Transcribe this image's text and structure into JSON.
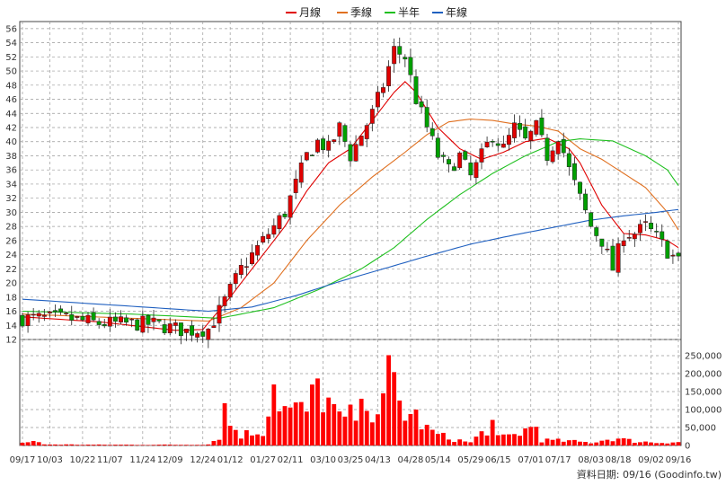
{
  "legend": [
    {
      "label": "月線",
      "color": "#e00000"
    },
    {
      "label": "季線",
      "color": "#e07020"
    },
    {
      "label": "半年",
      "color": "#20c020"
    },
    {
      "label": "年線",
      "color": "#2060c0"
    }
  ],
  "footer_text": "資料日期: 09/16 (Goodinfo.tw)",
  "chart_data": [
    {
      "type": "candlestick",
      "price_ticks": [
        12,
        14,
        16,
        18,
        20,
        22,
        24,
        26,
        28,
        30,
        32,
        34,
        36,
        38,
        40,
        42,
        44,
        46,
        48,
        50,
        52,
        54,
        56
      ],
      "ylim": [
        12,
        57
      ],
      "x_ticks": [
        "09/17",
        "10/03",
        "10/22",
        "11/07",
        "11/24",
        "12/09",
        "12/24",
        "01/12",
        "01/27",
        "02/11",
        "03/10",
        "03/25",
        "04/13",
        "04/28",
        "05/14",
        "05/29",
        "06/15",
        "07/01",
        "07/17",
        "08/03",
        "08/18",
        "09/02",
        "09/16"
      ],
      "price_anchors": [
        [
          0,
          15
        ],
        [
          8,
          15
        ],
        [
          14,
          14.3
        ],
        [
          24,
          14.2
        ],
        [
          30,
          13.2
        ],
        [
          34,
          13.5
        ],
        [
          36,
          16
        ],
        [
          40,
          22
        ],
        [
          44,
          26
        ],
        [
          48,
          30
        ],
        [
          50,
          34
        ],
        [
          52,
          38
        ],
        [
          54,
          40
        ],
        [
          56,
          39
        ],
        [
          58,
          42
        ],
        [
          60,
          38
        ],
        [
          62,
          41
        ],
        [
          64,
          44
        ],
        [
          66,
          48
        ],
        [
          68,
          53
        ],
        [
          70,
          52
        ],
        [
          72,
          46
        ],
        [
          74,
          42
        ],
        [
          76,
          38
        ],
        [
          78,
          36
        ],
        [
          80,
          38
        ],
        [
          82,
          35
        ],
        [
          84,
          38
        ],
        [
          86,
          41
        ],
        [
          88,
          39
        ],
        [
          90,
          42
        ],
        [
          92,
          40
        ],
        [
          94,
          42
        ],
        [
          96,
          38
        ],
        [
          98,
          41
        ],
        [
          100,
          36
        ],
        [
          102,
          32
        ],
        [
          104,
          28
        ],
        [
          106,
          26
        ],
        [
          108,
          22
        ],
        [
          110,
          27
        ],
        [
          112,
          27
        ],
        [
          114,
          28
        ],
        [
          116,
          26.5
        ],
        [
          118,
          24.5
        ],
        [
          120,
          23
        ]
      ],
      "series": [
        {
          "name": "月線",
          "color": "#e00000",
          "values": [
            [
              0,
              15.2
            ],
            [
              14,
              14.5
            ],
            [
              28,
              13.3
            ],
            [
              33,
              13.4
            ],
            [
              38,
              18
            ],
            [
              44,
              24
            ],
            [
              48,
              28
            ],
            [
              52,
              33
            ],
            [
              56,
              37
            ],
            [
              60,
              39
            ],
            [
              64,
              43
            ],
            [
              68,
              47
            ],
            [
              70,
              48.5
            ],
            [
              72,
              47
            ],
            [
              76,
              42
            ],
            [
              80,
              39
            ],
            [
              84,
              37.5
            ],
            [
              88,
              38.5
            ],
            [
              92,
              40
            ],
            [
              96,
              40.5
            ],
            [
              100,
              39
            ],
            [
              102,
              37
            ],
            [
              106,
              31
            ],
            [
              110,
              27
            ],
            [
              114,
              26.8
            ],
            [
              118,
              26
            ],
            [
              120,
              25
            ]
          ]
        },
        {
          "name": "季線",
          "color": "#e07020",
          "values": [
            [
              0,
              15.6
            ],
            [
              20,
              15
            ],
            [
              34,
              14.6
            ],
            [
              40,
              16.5
            ],
            [
              46,
              20
            ],
            [
              52,
              26
            ],
            [
              58,
              31
            ],
            [
              64,
              35
            ],
            [
              70,
              38.5
            ],
            [
              74,
              41
            ],
            [
              78,
              42.8
            ],
            [
              82,
              43.2
            ],
            [
              86,
              43
            ],
            [
              90,
              42.5
            ],
            [
              94,
              42.2
            ],
            [
              98,
              41.5
            ],
            [
              102,
              39
            ],
            [
              106,
              37.5
            ],
            [
              110,
              35.5
            ],
            [
              114,
              33.5
            ],
            [
              118,
              30
            ],
            [
              120,
              27.5
            ]
          ]
        },
        {
          "name": "半年",
          "color": "#20c020",
          "values": [
            [
              0,
              16
            ],
            [
              20,
              15.6
            ],
            [
              36,
              15
            ],
            [
              46,
              16.5
            ],
            [
              54,
              19
            ],
            [
              62,
              22
            ],
            [
              68,
              25
            ],
            [
              74,
              29
            ],
            [
              80,
              32.5
            ],
            [
              86,
              35.5
            ],
            [
              92,
              38
            ],
            [
              98,
              40
            ],
            [
              102,
              40.4
            ],
            [
              108,
              40.1
            ],
            [
              114,
              38
            ],
            [
              118,
              36
            ],
            [
              120,
              33.8
            ]
          ]
        },
        {
          "name": "年線",
          "color": "#2060c0",
          "values": [
            [
              0,
              17.7
            ],
            [
              14,
              17
            ],
            [
              26,
              16.4
            ],
            [
              34,
              16
            ],
            [
              42,
              16.6
            ],
            [
              50,
              18.2
            ],
            [
              58,
              20.2
            ],
            [
              66,
              22
            ],
            [
              74,
              23.8
            ],
            [
              82,
              25.5
            ],
            [
              90,
              26.8
            ],
            [
              98,
              28
            ],
            [
              104,
              28.9
            ],
            [
              110,
              29.5
            ],
            [
              116,
              30
            ],
            [
              120,
              30.4
            ]
          ]
        }
      ]
    },
    {
      "type": "bar",
      "name": "volume",
      "yticks": [
        0,
        50000,
        100000,
        150000,
        200000,
        250000
      ],
      "ytick_labels": [
        "0",
        "50,000",
        "100,000",
        "150,000",
        "200,000",
        "250,000"
      ],
      "ylim": [
        0,
        295000
      ],
      "bar_color": "#ff0000",
      "volume_anchors": [
        [
          0,
          8000
        ],
        [
          2,
          12000
        ],
        [
          4,
          3000
        ],
        [
          14,
          2000
        ],
        [
          30,
          2000
        ],
        [
          34,
          3000
        ],
        [
          36,
          25000
        ],
        [
          37,
          105000
        ],
        [
          38,
          60000
        ],
        [
          40,
          30000
        ],
        [
          44,
          40000
        ],
        [
          46,
          180000
        ],
        [
          47,
          130000
        ],
        [
          48,
          100000
        ],
        [
          52,
          95000
        ],
        [
          54,
          160000
        ],
        [
          56,
          120000
        ],
        [
          58,
          70000
        ],
        [
          60,
          80000
        ],
        [
          62,
          90000
        ],
        [
          63,
          165000
        ],
        [
          64,
          100000
        ],
        [
          66,
          110000
        ],
        [
          67,
          185000
        ],
        [
          68,
          170000
        ],
        [
          69,
          120000
        ],
        [
          70,
          90000
        ],
        [
          72,
          80000
        ],
        [
          74,
          45000
        ],
        [
          76,
          30000
        ],
        [
          78,
          20000
        ],
        [
          82,
          8000
        ],
        [
          86,
          60000
        ],
        [
          87,
          20000
        ],
        [
          90,
          30000
        ],
        [
          94,
          55000
        ],
        [
          95,
          15000
        ],
        [
          100,
          12000
        ],
        [
          104,
          8000
        ],
        [
          108,
          20000
        ],
        [
          112,
          12000
        ],
        [
          116,
          8000
        ],
        [
          120,
          10000
        ]
      ]
    }
  ]
}
